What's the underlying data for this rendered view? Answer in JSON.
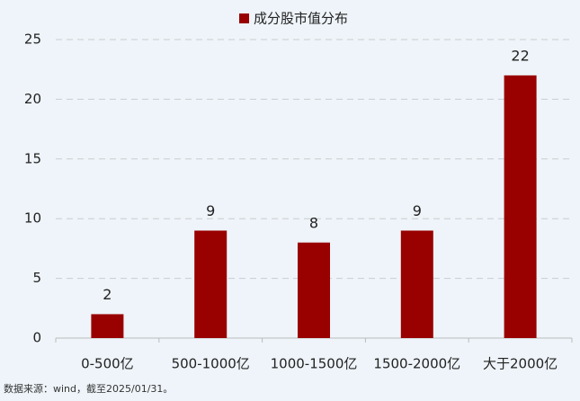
{
  "chart_data": {
    "type": "bar",
    "legend": "成分股市值分布",
    "categories": [
      "0-500亿",
      "500-1000亿",
      "1000-1500亿",
      "1500-2000亿",
      "大于2000亿"
    ],
    "values": [
      2,
      9,
      8,
      9,
      22
    ],
    "color": "#990000",
    "ylim": [
      0,
      25
    ],
    "yticks": [
      0,
      5,
      10,
      15,
      20,
      25
    ],
    "grid": true,
    "data_labels": true,
    "source": "数据来源：wind，截至2025/01/31。"
  }
}
